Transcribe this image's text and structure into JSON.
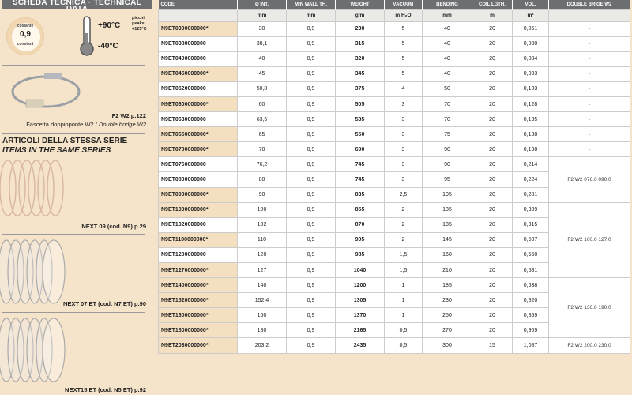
{
  "left": {
    "header": "SCHEDA TECNICA · TECHNICAL DATA",
    "wall": {
      "top": "costante",
      "value": "0,9",
      "bottom": "constant"
    },
    "temp": {
      "max": "+90°C",
      "min": "-40°C",
      "peaks1": "picchi",
      "peaks2": "peaks",
      "peaks3": "+125°C"
    },
    "clamp": {
      "code": "F2 W2 p.122",
      "desc_it": "Fascetta doppioponte W2 / ",
      "desc_en": "Double bridge W2"
    },
    "series": {
      "it": "ARTICOLI DELLA STESSA SERIE",
      "en": "ITEMS IN THE SAME SERIES"
    },
    "products": [
      "NEXT 09 (cod. N9) p.29",
      "NEXT 07 ET (cod. N7 ET) p.90",
      "NEXT15 ET (cod. N5 ET) p.92"
    ]
  },
  "table": {
    "headers": [
      "CODE",
      "Ø INT.",
      "MIN WALL TH.",
      "WEIGHT",
      "VACUUM",
      "BENDING",
      "COIL LGTH.",
      "VOL.",
      "DOUBLE BRIGE W2"
    ],
    "units": [
      "",
      "mm",
      "mm",
      "g/m",
      "m H₂O",
      "mm",
      "m",
      "m³",
      ""
    ],
    "rows": [
      [
        "N9ET0300000000*",
        "30",
        "0,9",
        "230",
        "5",
        "40",
        "20",
        "0,051"
      ],
      [
        "N9ET0380000000",
        "38,1",
        "0,9",
        "315",
        "5",
        "40",
        "20",
        "0,080"
      ],
      [
        "N9ET0400000000",
        "40",
        "0,9",
        "320",
        "5",
        "40",
        "20",
        "0,084"
      ],
      [
        "N9ET0450000000*",
        "45",
        "0,9",
        "345",
        "5",
        "40",
        "20",
        "0,093"
      ],
      [
        "N9ET0520000000",
        "50,8",
        "0,9",
        "375",
        "4",
        "50",
        "20",
        "0,103"
      ],
      [
        "N9ET0600000000*",
        "60",
        "0,9",
        "505",
        "3",
        "70",
        "20",
        "0,128"
      ],
      [
        "N9ET0630000000",
        "63,5",
        "0,9",
        "535",
        "3",
        "70",
        "20",
        "0,135"
      ],
      [
        "N9ET0650000000*",
        "65",
        "0,9",
        "550",
        "3",
        "75",
        "20",
        "0,138"
      ],
      [
        "N9ET0700000000*",
        "70",
        "0,9",
        "690",
        "3",
        "90",
        "20",
        "0,198"
      ],
      [
        "N9ET0760000000",
        "76,2",
        "0,9",
        "745",
        "3",
        "90",
        "20",
        "0,214"
      ],
      [
        "N9ET0800000000",
        "80",
        "0,9",
        "745",
        "3",
        "95",
        "20",
        "0,224"
      ],
      [
        "N9ET0900000000*",
        "90",
        "0,9",
        "835",
        "2,5",
        "105",
        "20",
        "0,281"
      ],
      [
        "N9ET1000000000*",
        "100",
        "0,9",
        "855",
        "2",
        "135",
        "20",
        "0,309"
      ],
      [
        "N9ET1020000000",
        "102",
        "0,9",
        "870",
        "2",
        "135",
        "20",
        "0,315"
      ],
      [
        "N9ET1100000000*",
        "110",
        "0,9",
        "905",
        "2",
        "145",
        "20",
        "0,507"
      ],
      [
        "N9ET1200000000",
        "120",
        "0,9",
        "985",
        "1,5",
        "160",
        "20",
        "0,550"
      ],
      [
        "N9ET1270000000*",
        "127",
        "0,9",
        "1040",
        "1,5",
        "210",
        "20",
        "0,581"
      ],
      [
        "N9ET1400000000*",
        "140",
        "0,9",
        "1200",
        "1",
        "185",
        "20",
        "0,638"
      ],
      [
        "N9ET1520000000*",
        "152,4",
        "0,9",
        "1305",
        "1",
        "230",
        "20",
        "0,820"
      ],
      [
        "N9ET1600000000*",
        "160",
        "0,9",
        "1370",
        "1",
        "250",
        "20",
        "0,859"
      ],
      [
        "N9ET1800000000*",
        "180",
        "0,9",
        "2165",
        "0,5",
        "270",
        "20",
        "0,969"
      ],
      [
        "N9ET2030000000*",
        "203,2",
        "0,9",
        "2435",
        "0,5",
        "300",
        "15",
        "1,087"
      ]
    ],
    "bridges": [
      {
        "label": "-",
        "span": 1
      },
      {
        "label": "-",
        "span": 1
      },
      {
        "label": "-",
        "span": 1
      },
      {
        "label": "-",
        "span": 1
      },
      {
        "label": "-",
        "span": 1
      },
      {
        "label": "-",
        "span": 1
      },
      {
        "label": "-",
        "span": 1
      },
      {
        "label": "-",
        "span": 1
      },
      {
        "label": "-",
        "span": 1
      },
      {
        "label": "F2 W2 076.0 090.0",
        "span": 3
      },
      {
        "label": "F2 W2 100.0 127.0",
        "span": 5
      },
      {
        "label": "F2 W2 130.0 190.0",
        "span": 4
      },
      {
        "label": "F2 W2 200.0 230.0",
        "span": 1
      }
    ]
  },
  "colors": {
    "header": "#6d6e70",
    "highlight": "#f4dfc0",
    "background": "#f6e4ca"
  }
}
